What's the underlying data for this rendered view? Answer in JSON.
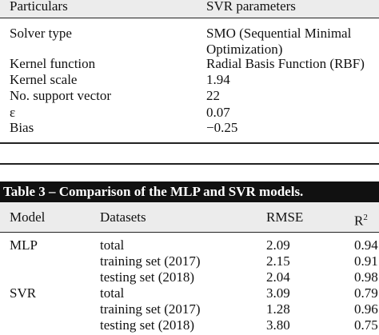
{
  "top_table": {
    "header": [
      "Particulars",
      "SVR parameters"
    ],
    "rows": [
      [
        "Solver type",
        "SMO (Sequential Minimal Optimization)"
      ],
      [
        "Kernel function",
        "Radial Basis Function (RBF)"
      ],
      [
        "Kernel scale",
        "1.94"
      ],
      [
        "No. support vector",
        "22"
      ],
      [
        "ε",
        "0.07"
      ],
      [
        "Bias",
        "−0.25"
      ]
    ]
  },
  "bottom_table": {
    "title": "Table 3 – Comparison of the MLP and SVR models.",
    "header": [
      "Model",
      "Datasets",
      "RMSE",
      {
        "base": "R",
        "sup": "2"
      }
    ],
    "rows": [
      [
        "MLP",
        "total",
        "2.09",
        "0.94"
      ],
      [
        null,
        "training set (2017)",
        "2.15",
        "0.91"
      ],
      [
        null,
        "testing set (2018)",
        "2.04",
        "0.98"
      ],
      [
        "SVR",
        "total",
        "3.09",
        "0.79"
      ],
      [
        null,
        "training set (2017)",
        "1.28",
        "0.96"
      ],
      [
        null,
        "testing set (2018)",
        "3.80",
        "0.75"
      ]
    ]
  }
}
